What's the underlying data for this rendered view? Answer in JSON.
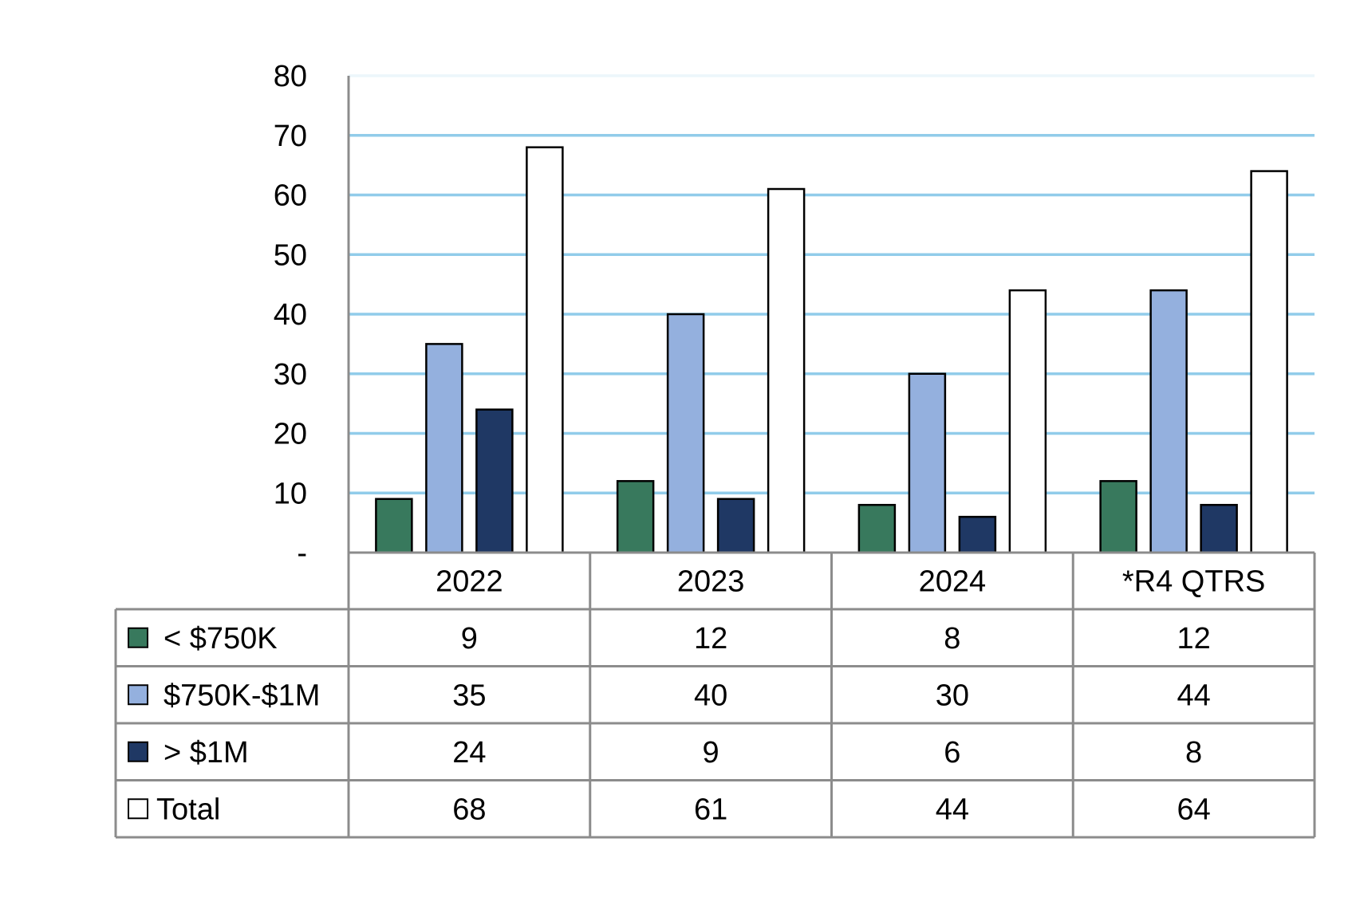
{
  "chart_data": {
    "type": "bar",
    "categories": [
      "2022",
      "2023",
      "2024",
      "*R4 QTRS"
    ],
    "series": [
      {
        "name": "< $750K",
        "values": [
          9,
          12,
          8,
          12
        ],
        "color": "#38795d"
      },
      {
        "name": "$750K-$1M",
        "values": [
          35,
          40,
          30,
          44
        ],
        "color": "#94b0de"
      },
      {
        "name": "> $1M",
        "values": [
          24,
          9,
          6,
          8
        ],
        "color": "#1f3864"
      },
      {
        "name": "Total",
        "values": [
          68,
          61,
          44,
          64
        ],
        "color": "#ffffff"
      }
    ],
    "title": "",
    "xlabel": "",
    "ylabel": "",
    "ylim": [
      0,
      80
    ],
    "yticks": [
      0,
      10,
      20,
      30,
      40,
      50,
      60,
      70,
      80
    ],
    "ytick_labels": [
      "-",
      "10",
      "20",
      "30",
      "40",
      "50",
      "60",
      "70",
      "80"
    ],
    "grid": true,
    "gridline_color": "#7ec3e6",
    "legend": "data-table-below",
    "data_table": true
  }
}
